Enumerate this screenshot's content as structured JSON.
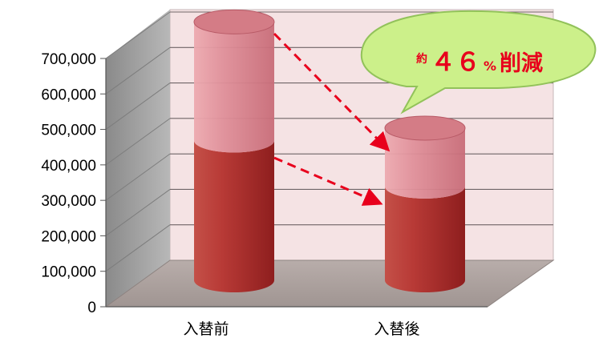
{
  "chart_data": {
    "type": "bar",
    "style": "3d-cylinder-stacked",
    "categories": [
      "入替前",
      "入替後"
    ],
    "series": [
      {
        "values": [
          395000,
          265000
        ],
        "color": "#b4302e"
      },
      {
        "values": [
          335000,
          165000
        ],
        "color": "#e08890"
      }
    ],
    "totals": [
      730000,
      430000
    ],
    "ylim": [
      0,
      700000
    ],
    "y_ticks": [
      "0",
      "100,000",
      "200,000",
      "300,000",
      "400,000",
      "500,000",
      "600,000",
      "700,000"
    ],
    "grid": true,
    "annotation": {
      "prefix": "約",
      "number": "４６",
      "percent": "%",
      "text": "削減",
      "color": "#e8001c",
      "bubble_color": "#ccf08a"
    }
  }
}
